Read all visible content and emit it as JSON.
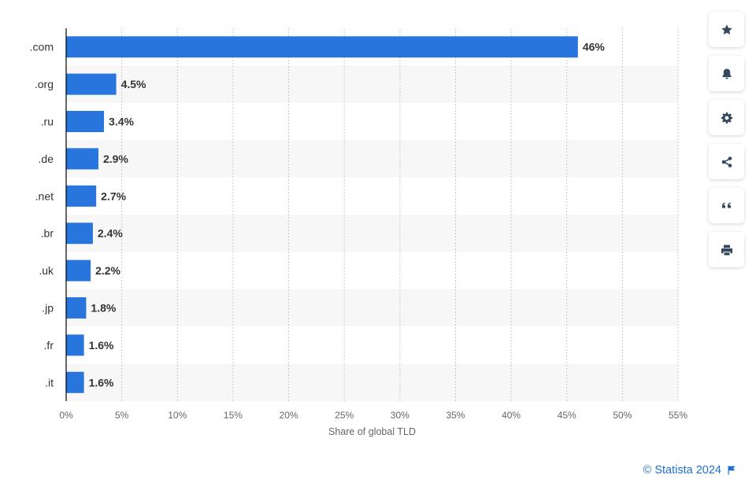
{
  "chart_data": {
    "type": "bar",
    "orientation": "horizontal",
    "categories": [
      ".com",
      ".org",
      ".ru",
      ".de",
      ".net",
      ".br",
      ".uk",
      ".jp",
      ".fr",
      ".it"
    ],
    "values": [
      46,
      4.5,
      3.4,
      2.9,
      2.7,
      2.4,
      2.2,
      1.8,
      1.6,
      1.6
    ],
    "value_labels": [
      "46%",
      "4.5%",
      "3.4%",
      "2.9%",
      "2.7%",
      "2.4%",
      "2.2%",
      "1.8%",
      "1.6%",
      "1.6%"
    ],
    "xlabel": "Share of global TLD",
    "xlim": [
      0,
      55
    ],
    "xticks": [
      0,
      5,
      10,
      15,
      20,
      25,
      30,
      35,
      40,
      45,
      50,
      55
    ],
    "xtick_labels": [
      "0%",
      "5%",
      "10%",
      "15%",
      "20%",
      "25%",
      "30%",
      "35%",
      "40%",
      "45%",
      "50%",
      "55%"
    ],
    "grid": true,
    "bar_color": "#2876dd"
  },
  "toolbar": {
    "buttons": [
      {
        "name": "favorite-button",
        "icon": "star-icon"
      },
      {
        "name": "notification-button",
        "icon": "bell-icon"
      },
      {
        "name": "settings-button",
        "icon": "gear-icon"
      },
      {
        "name": "share-button",
        "icon": "share-icon"
      },
      {
        "name": "cite-button",
        "icon": "quote-icon"
      },
      {
        "name": "print-button",
        "icon": "printer-icon"
      }
    ]
  },
  "credit": {
    "text": "© Statista 2024",
    "icon": "flag-icon",
    "color": "#1f6fcf"
  }
}
